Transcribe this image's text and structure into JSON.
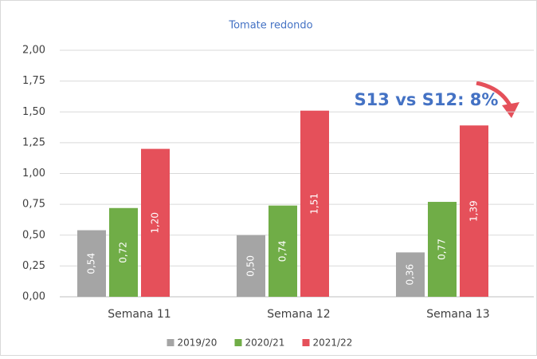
{
  "chart_data": {
    "type": "bar",
    "title": "Tomate redondo",
    "annotation": "S13 vs S12: 8%",
    "categories": [
      "Semana 11",
      "Semana 12",
      "Semana 13"
    ],
    "series": [
      {
        "name": "2019/20",
        "color": "#a5a5a5",
        "values": [
          0.54,
          0.5,
          0.36
        ],
        "value_labels": [
          "0,54",
          "0,50",
          "0,36"
        ]
      },
      {
        "name": "2020/21",
        "color": "#70ad47",
        "values": [
          0.72,
          0.74,
          0.77
        ],
        "value_labels": [
          "0,72",
          "0,74",
          "0,77"
        ]
      },
      {
        "name": "2021/22",
        "color": "#e5505a",
        "values": [
          1.2,
          1.51,
          1.39
        ],
        "value_labels": [
          "1,20",
          "1,51",
          "1,39"
        ]
      }
    ],
    "ylim": [
      0,
      2
    ],
    "yticks": [
      {
        "value": 0,
        "label": "0,00"
      },
      {
        "value": 0.25,
        "label": "0,25"
      },
      {
        "value": 0.5,
        "label": "0,50"
      },
      {
        "value": 0.75,
        "label": "0,75"
      },
      {
        "value": 1,
        "label": "1,00"
      },
      {
        "value": 1.25,
        "label": "1,25"
      },
      {
        "value": 1.5,
        "label": "1,50"
      },
      {
        "value": 1.75,
        "label": "1,75"
      },
      {
        "value": 2,
        "label": "2,00"
      }
    ],
    "grid": true,
    "legend": "bottom"
  }
}
